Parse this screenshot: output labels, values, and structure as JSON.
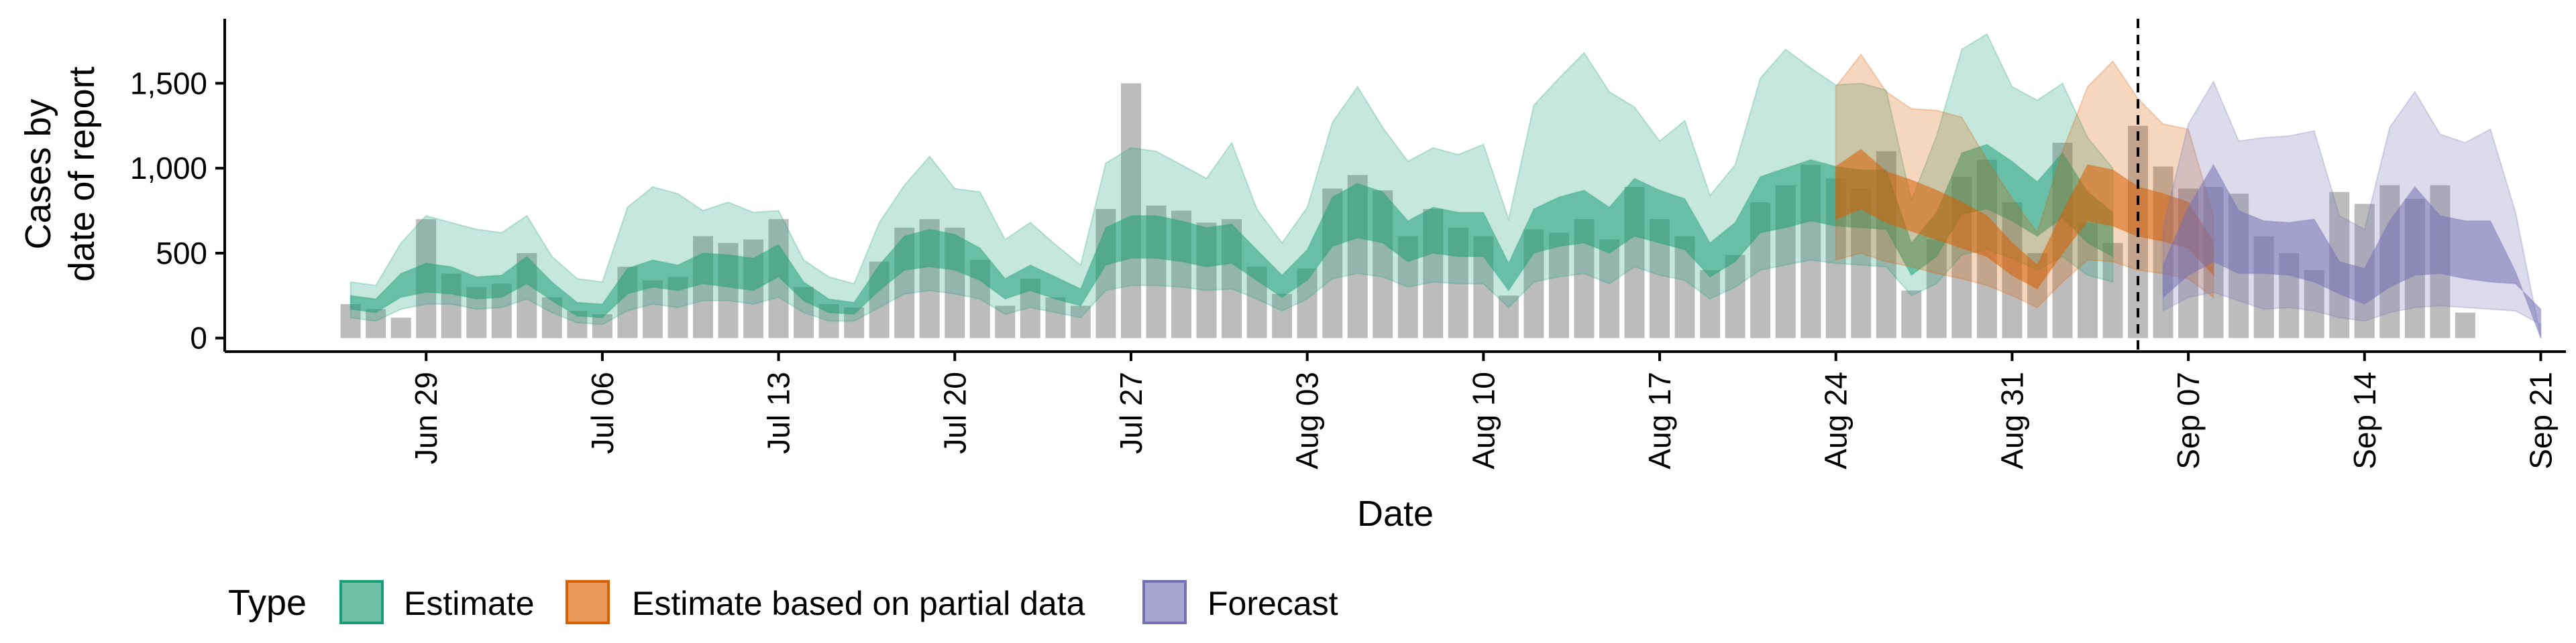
{
  "chart_data": {
    "type": "area",
    "xlabel": "Date",
    "ylabel_lines": [
      "Cases by",
      "date of report"
    ],
    "yticks": [
      0,
      500,
      1000,
      1500
    ],
    "ytick_labels": [
      "0",
      "500",
      "1,000",
      "1,500"
    ],
    "ylim": [
      -80,
      1880
    ],
    "xlim": [
      "2020-06-21",
      "2020-09-22"
    ],
    "xticks": [
      "2020-06-29",
      "2020-07-06",
      "2020-07-13",
      "2020-07-20",
      "2020-07-27",
      "2020-08-03",
      "2020-08-10",
      "2020-08-17",
      "2020-08-24",
      "2020-08-31",
      "2020-09-07",
      "2020-09-14",
      "2020-09-21"
    ],
    "xtick_labels": [
      "Jun 29",
      "Jul 06",
      "Jul 13",
      "Jul 20",
      "Jul 27",
      "Aug 03",
      "Aug 10",
      "Aug 17",
      "Aug 24",
      "Aug 31",
      "Sep 07",
      "Sep 14",
      "Sep 21"
    ],
    "forecast_start_line": "2020-09-05",
    "legend": {
      "title": "Type",
      "position": "bottom",
      "items": [
        "Estimate",
        "Estimate based on partial data",
        "Forecast"
      ]
    },
    "colors": {
      "Estimate": "#1b9e77",
      "Estimate based on partial data": "#d95f02",
      "Forecast": "#7570b3",
      "bars": "#a6a6a6"
    },
    "bars": {
      "start": "2020-06-26",
      "values": [
        200,
        170,
        120,
        700,
        380,
        300,
        320,
        500,
        240,
        160,
        140,
        420,
        340,
        360,
        600,
        560,
        580,
        700,
        300,
        200,
        180,
        450,
        650,
        700,
        650,
        460,
        190,
        350,
        240,
        190,
        760,
        1500,
        780,
        750,
        680,
        700,
        420,
        260,
        410,
        880,
        960,
        870,
        600,
        760,
        650,
        600,
        250,
        640,
        620,
        700,
        580,
        890,
        700,
        600,
        400,
        490,
        800,
        900,
        1020,
        940,
        880,
        1100,
        280,
        580,
        950,
        1050,
        800,
        500,
        1150,
        680,
        560,
        1250,
        1010,
        880,
        890,
        850,
        600,
        500,
        400,
        860,
        790,
        900,
        820,
        900,
        150
      ]
    },
    "series": [
      {
        "name": "Estimate",
        "start": "2020-06-26",
        "lower90": [
          120,
          100,
          170,
          200,
          200,
          170,
          180,
          230,
          150,
          90,
          80,
          160,
          200,
          180,
          220,
          220,
          200,
          240,
          150,
          100,
          100,
          180,
          260,
          280,
          260,
          230,
          140,
          180,
          150,
          120,
          280,
          310,
          310,
          300,
          280,
          290,
          230,
          160,
          230,
          350,
          380,
          360,
          300,
          330,
          320,
          320,
          180,
          330,
          360,
          380,
          320,
          420,
          370,
          340,
          230,
          300,
          400,
          430,
          460,
          440,
          430,
          420,
          250,
          320,
          490,
          520,
          470,
          400,
          480,
          370,
          330
        ],
        "lower50": [
          170,
          150,
          240,
          270,
          260,
          230,
          240,
          320,
          220,
          130,
          120,
          260,
          300,
          280,
          320,
          300,
          280,
          360,
          220,
          150,
          140,
          280,
          400,
          420,
          400,
          340,
          230,
          280,
          230,
          190,
          430,
          470,
          470,
          450,
          420,
          440,
          340,
          240,
          340,
          540,
          590,
          560,
          450,
          500,
          480,
          480,
          280,
          500,
          540,
          560,
          500,
          600,
          560,
          520,
          360,
          450,
          620,
          650,
          690,
          660,
          650,
          640,
          370,
          480,
          730,
          760,
          690,
          600,
          710,
          560,
          480
        ],
        "upper50": [
          250,
          230,
          380,
          440,
          420,
          360,
          370,
          480,
          330,
          210,
          200,
          410,
          460,
          430,
          500,
          490,
          470,
          550,
          330,
          230,
          210,
          430,
          600,
          640,
          610,
          530,
          350,
          430,
          360,
          290,
          650,
          720,
          720,
          690,
          650,
          670,
          520,
          370,
          520,
          830,
          910,
          860,
          690,
          770,
          740,
          740,
          440,
          760,
          830,
          870,
          770,
          940,
          870,
          820,
          560,
          680,
          950,
          1000,
          1050,
          1010,
          990,
          990,
          560,
          740,
          1090,
          1140,
          1040,
          920,
          1090,
          860,
          740
        ],
        "upper90": [
          330,
          310,
          560,
          720,
          680,
          640,
          620,
          720,
          480,
          350,
          330,
          770,
          890,
          850,
          750,
          800,
          740,
          750,
          460,
          360,
          320,
          680,
          900,
          1070,
          880,
          860,
          580,
          680,
          550,
          430,
          1030,
          1120,
          1100,
          1020,
          940,
          1150,
          760,
          560,
          770,
          1270,
          1480,
          1240,
          1040,
          1120,
          1080,
          1140,
          700,
          1370,
          1530,
          1680,
          1450,
          1360,
          1160,
          1280,
          840,
          1020,
          1530,
          1700,
          1590,
          1490,
          1500,
          1460,
          810,
          1190,
          1700,
          1790,
          1480,
          1400,
          1500,
          1180,
          1000
        ]
      },
      {
        "name": "Estimate based on partial data",
        "start": "2020-08-24",
        "lower90": [
          460,
          500,
          450,
          420,
          380,
          350,
          310,
          250,
          180,
          330,
          460,
          450,
          400,
          380,
          350,
          240
        ],
        "lower50": [
          700,
          760,
          680,
          630,
          580,
          530,
          480,
          370,
          290,
          500,
          690,
          660,
          600,
          570,
          530,
          370
        ],
        "upper50": [
          1010,
          1110,
          980,
          930,
          870,
          800,
          720,
          560,
          430,
          740,
          1020,
          990,
          890,
          850,
          800,
          560
        ],
        "upper90": [
          1480,
          1670,
          1450,
          1350,
          1340,
          1300,
          1050,
          820,
          620,
          1100,
          1480,
          1630,
          1410,
          1260,
          1230,
          720
        ]
      },
      {
        "name": "Forecast",
        "start": "2020-09-06",
        "lower90": [
          160,
          240,
          270,
          220,
          170,
          180,
          160,
          120,
          100,
          150,
          180,
          190,
          180,
          170,
          160,
          80
        ],
        "lower50": [
          240,
          370,
          450,
          380,
          380,
          370,
          330,
          260,
          200,
          300,
          370,
          380,
          350,
          330,
          320,
          170
        ],
        "upper50": [
          430,
          770,
          1020,
          750,
          690,
          680,
          700,
          450,
          410,
          690,
          890,
          720,
          690,
          690,
          390,
          0
        ],
        "upper90": [
          650,
          1260,
          1510,
          1160,
          1180,
          1190,
          1220,
          720,
          640,
          1240,
          1450,
          1200,
          1150,
          1230,
          740,
          0
        ]
      }
    ]
  }
}
